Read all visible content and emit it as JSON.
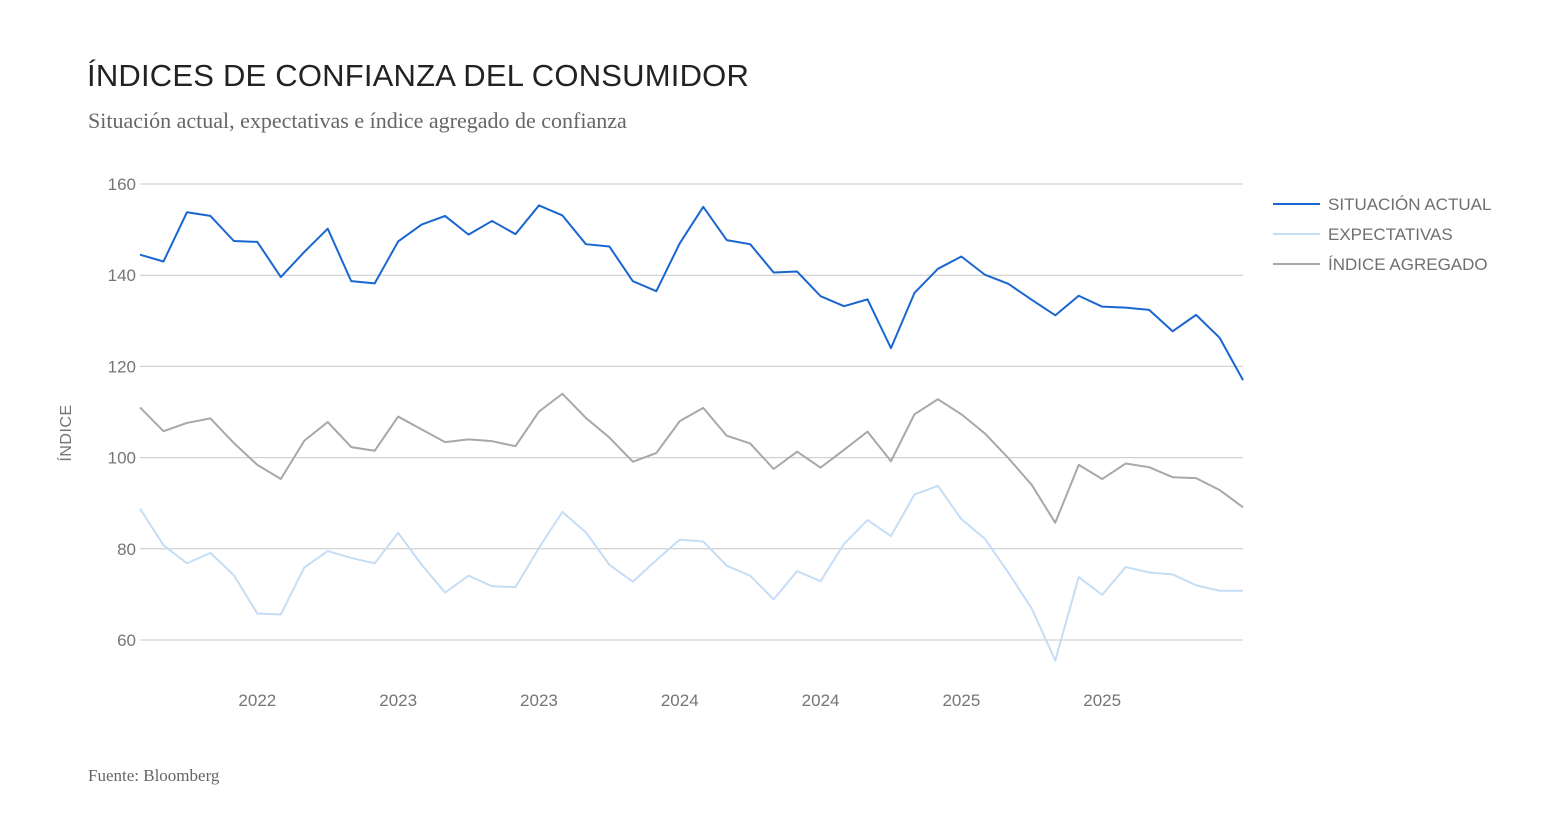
{
  "header": {
    "title": "ÍNDICES DE CONFIANZA DEL CONSUMIDOR",
    "subtitle": "Situación actual, expectativas e índice agregado de confianza"
  },
  "footer": {
    "source": "Fuente: Bloomberg"
  },
  "chart_data": {
    "type": "line",
    "title": "ÍNDICES DE CONFIANZA DEL CONSUMIDOR",
    "subtitle": "Situación actual, expectativas e índice agregado de confianza",
    "xlabel": "",
    "ylabel": "ÍNDICE",
    "ylim": [
      50,
      160
    ],
    "yticks": [
      60,
      80,
      100,
      120,
      140,
      160
    ],
    "xticks": [
      {
        "index": 5,
        "label": "2022"
      },
      {
        "index": 11,
        "label": "2023"
      },
      {
        "index": 17,
        "label": "2023"
      },
      {
        "index": 23,
        "label": "2024"
      },
      {
        "index": 29,
        "label": "2024"
      },
      {
        "index": 35,
        "label": "2025"
      },
      {
        "index": 41,
        "label": "2025"
      }
    ],
    "grid": true,
    "legend_position": "top-right",
    "series": [
      {
        "name": "SITUACIÓN ACTUAL",
        "color": "#1a66d1",
        "values": [
          144.5,
          143,
          153.8,
          153,
          147.5,
          147.3,
          139.6,
          145.1,
          150.2,
          138.7,
          138.2,
          147.4,
          151.1,
          153,
          148.9,
          151.9,
          149,
          155.3,
          153.1,
          146.8,
          146.3,
          138.7,
          136.5,
          147,
          155,
          147.7,
          146.8,
          140.6,
          140.8,
          135.4,
          133.2,
          134.7,
          124,
          136.1,
          141.4,
          144.1,
          140.1,
          138.1,
          134.6,
          131.2,
          135.5,
          133.1,
          132.9,
          132.4,
          127.7,
          131.3,
          126.3,
          117
        ]
      },
      {
        "name": "EXPECTATIVAS",
        "color": "#c5ddf5",
        "values": [
          88.8,
          80.8,
          76.8,
          79.1,
          74.2,
          65.8,
          65.6,
          75.9,
          79.5,
          78,
          76.8,
          83.5,
          76.5,
          70.4,
          74.1,
          71.8,
          71.6,
          80.2,
          88.1,
          83.6,
          76.5,
          72.8,
          77.5,
          82,
          81.6,
          76.3,
          74.1,
          68.9,
          75.1,
          72.9,
          81.1,
          86.3,
          82.8,
          91.9,
          93.8,
          86.5,
          82.2,
          74.8,
          66.9,
          55.5,
          73.8,
          69.9,
          76,
          74.8,
          74.4,
          72,
          70.8,
          70.8
        ]
      },
      {
        "name": "ÍNDICE AGREGADO",
        "color": "#a8a8a8",
        "values": [
          111,
          105.8,
          107.6,
          108.6,
          103.2,
          98.4,
          95.3,
          103.7,
          107.8,
          102.3,
          101.5,
          109,
          106.2,
          103.4,
          104,
          103.6,
          102.5,
          110.1,
          114,
          108.7,
          104.4,
          99.1,
          101,
          108,
          110.9,
          104.8,
          103.1,
          97.5,
          101.3,
          97.8,
          101.7,
          105.7,
          99.2,
          109.5,
          112.8,
          109.5,
          105.3,
          99.9,
          94,
          85.7,
          98.4,
          95.3,
          98.7,
          97.9,
          95.7,
          95.5,
          92.9,
          89.1
        ]
      }
    ]
  }
}
